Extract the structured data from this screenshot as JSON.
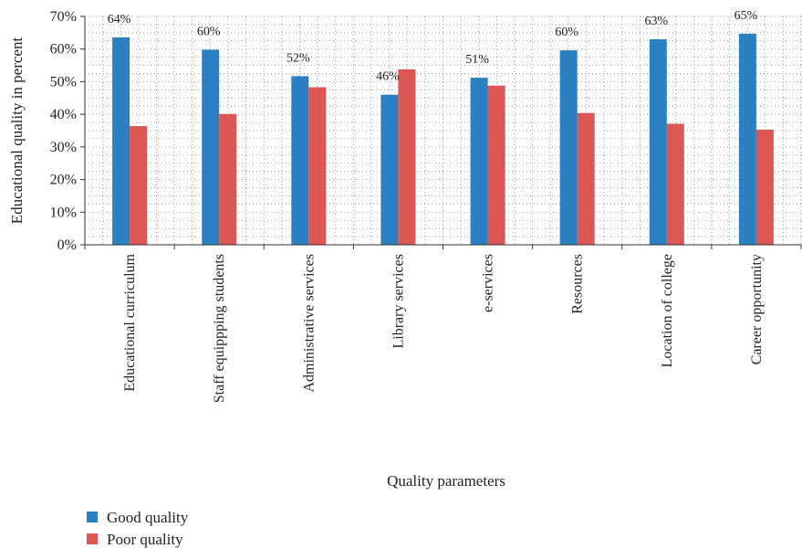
{
  "chart_data": {
    "type": "bar",
    "title": "",
    "xlabel": "Quality parameters",
    "ylabel": "Educational quality in percent",
    "ylim": [
      0,
      70
    ],
    "yticks": [
      0,
      10,
      20,
      30,
      40,
      50,
      60,
      70
    ],
    "ytick_format": "percent",
    "grid": true,
    "legend_position": "bottom-left",
    "categories": [
      "Educational curriculum",
      "Staff equippping students",
      "Administrative services",
      "Library services",
      "e-services",
      "Resources",
      "Location of college",
      "Career opportunity"
    ],
    "series": [
      {
        "name": "Good quality",
        "color": "#2a80c1",
        "values": [
          63.6,
          59.8,
          51.7,
          46.0,
          51.2,
          59.6,
          63.0,
          64.7
        ],
        "labels": [
          "64%",
          "60%",
          "52%",
          "46%",
          "51%",
          "60%",
          "63%",
          "65%"
        ]
      },
      {
        "name": "Poor quality",
        "color": "#dc5653",
        "values": [
          36.4,
          40.1,
          48.3,
          53.8,
          48.8,
          40.4,
          37.1,
          35.3
        ]
      }
    ]
  }
}
